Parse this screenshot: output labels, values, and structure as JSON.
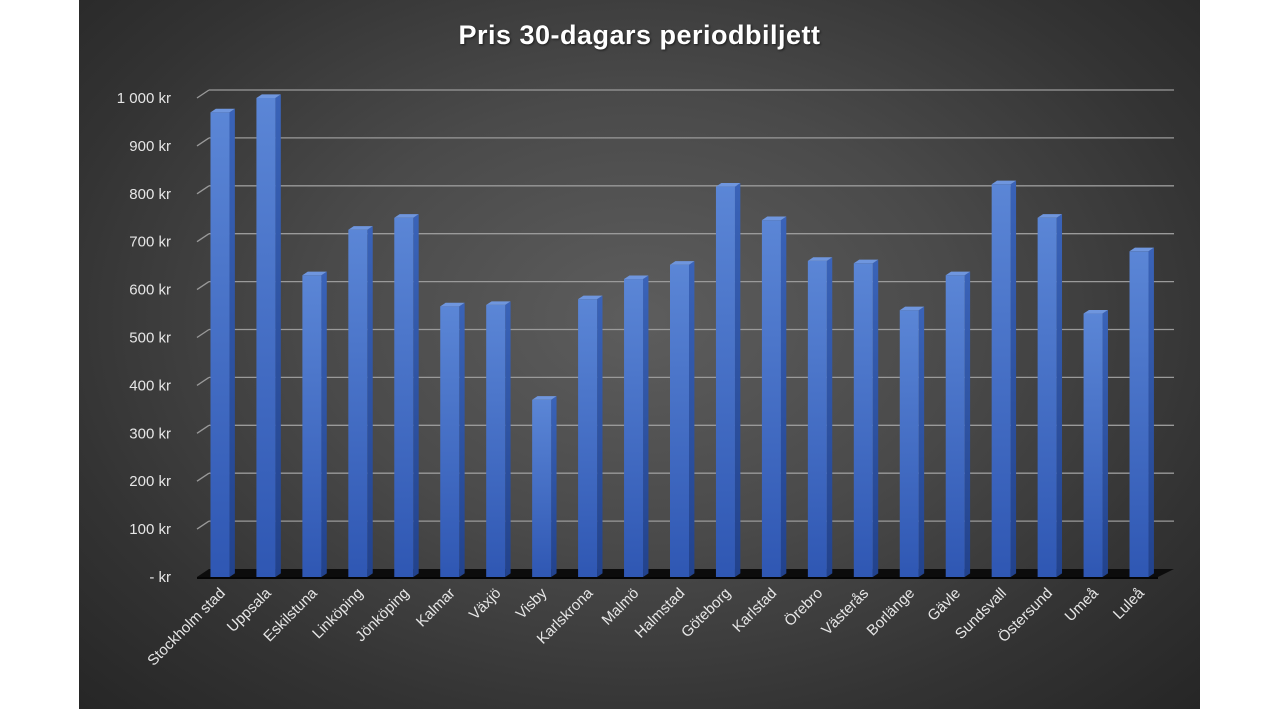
{
  "chart_data": {
    "type": "bar",
    "title": "Pris 30-dagars periodbiljett",
    "categories": [
      "Stockholm stad",
      "Uppsala",
      "Eskilstuna",
      "Linköping",
      "Jönköping",
      "Kalmar",
      "Växjö",
      "Visby",
      "Karlskrona",
      "Malmö",
      "Halmstad",
      "Göteborg",
      "Karlstad",
      "Örebro",
      "Västerås",
      "Borlänge",
      "Gävle",
      "Sundsvall",
      "Östersund",
      "Umeå",
      "Luleå"
    ],
    "values": [
      970,
      1000,
      630,
      725,
      750,
      565,
      568,
      370,
      580,
      622,
      652,
      815,
      745,
      660,
      655,
      557,
      630,
      820,
      750,
      550,
      680
    ],
    "ylim": [
      0,
      1000
    ],
    "yticks": [
      0,
      100,
      200,
      300,
      400,
      500,
      600,
      700,
      800,
      900,
      1000
    ],
    "ytick_labels": [
      "-   kr",
      "100 kr",
      "200 kr",
      "300 kr",
      "400 kr",
      "500 kr",
      "600 kr",
      "700 kr",
      "800 kr",
      "900 kr",
      "1 000 kr"
    ],
    "xlabel": "",
    "ylabel": "",
    "grid": true,
    "bar_color": "#4472c4",
    "background": "#404040"
  }
}
